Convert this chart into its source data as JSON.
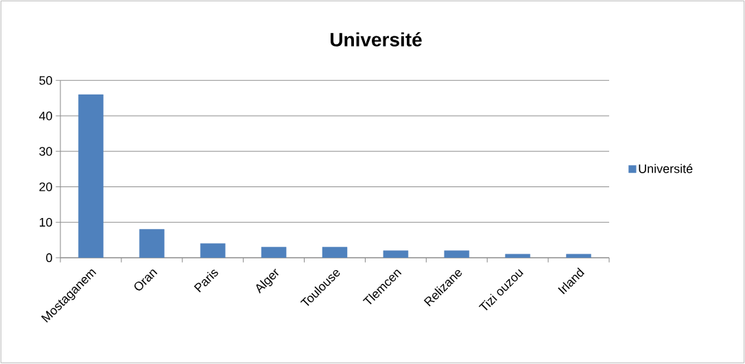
{
  "chart_data": {
    "type": "bar",
    "title": "Université",
    "categories": [
      "Mostaganem",
      "Oran",
      "Paris",
      "Alger",
      "Toulouse",
      "Tlemcen",
      "Relizane",
      "Tizi ouzou",
      "Irland"
    ],
    "series": [
      {
        "name": "Université",
        "color": "#4f81bd",
        "values": [
          46,
          8,
          4,
          3,
          3,
          2,
          2,
          1,
          1
        ]
      }
    ],
    "ylim": [
      0,
      50
    ],
    "yticks": [
      0,
      10,
      20,
      30,
      40,
      50
    ],
    "grid": "y",
    "legend": "right"
  }
}
